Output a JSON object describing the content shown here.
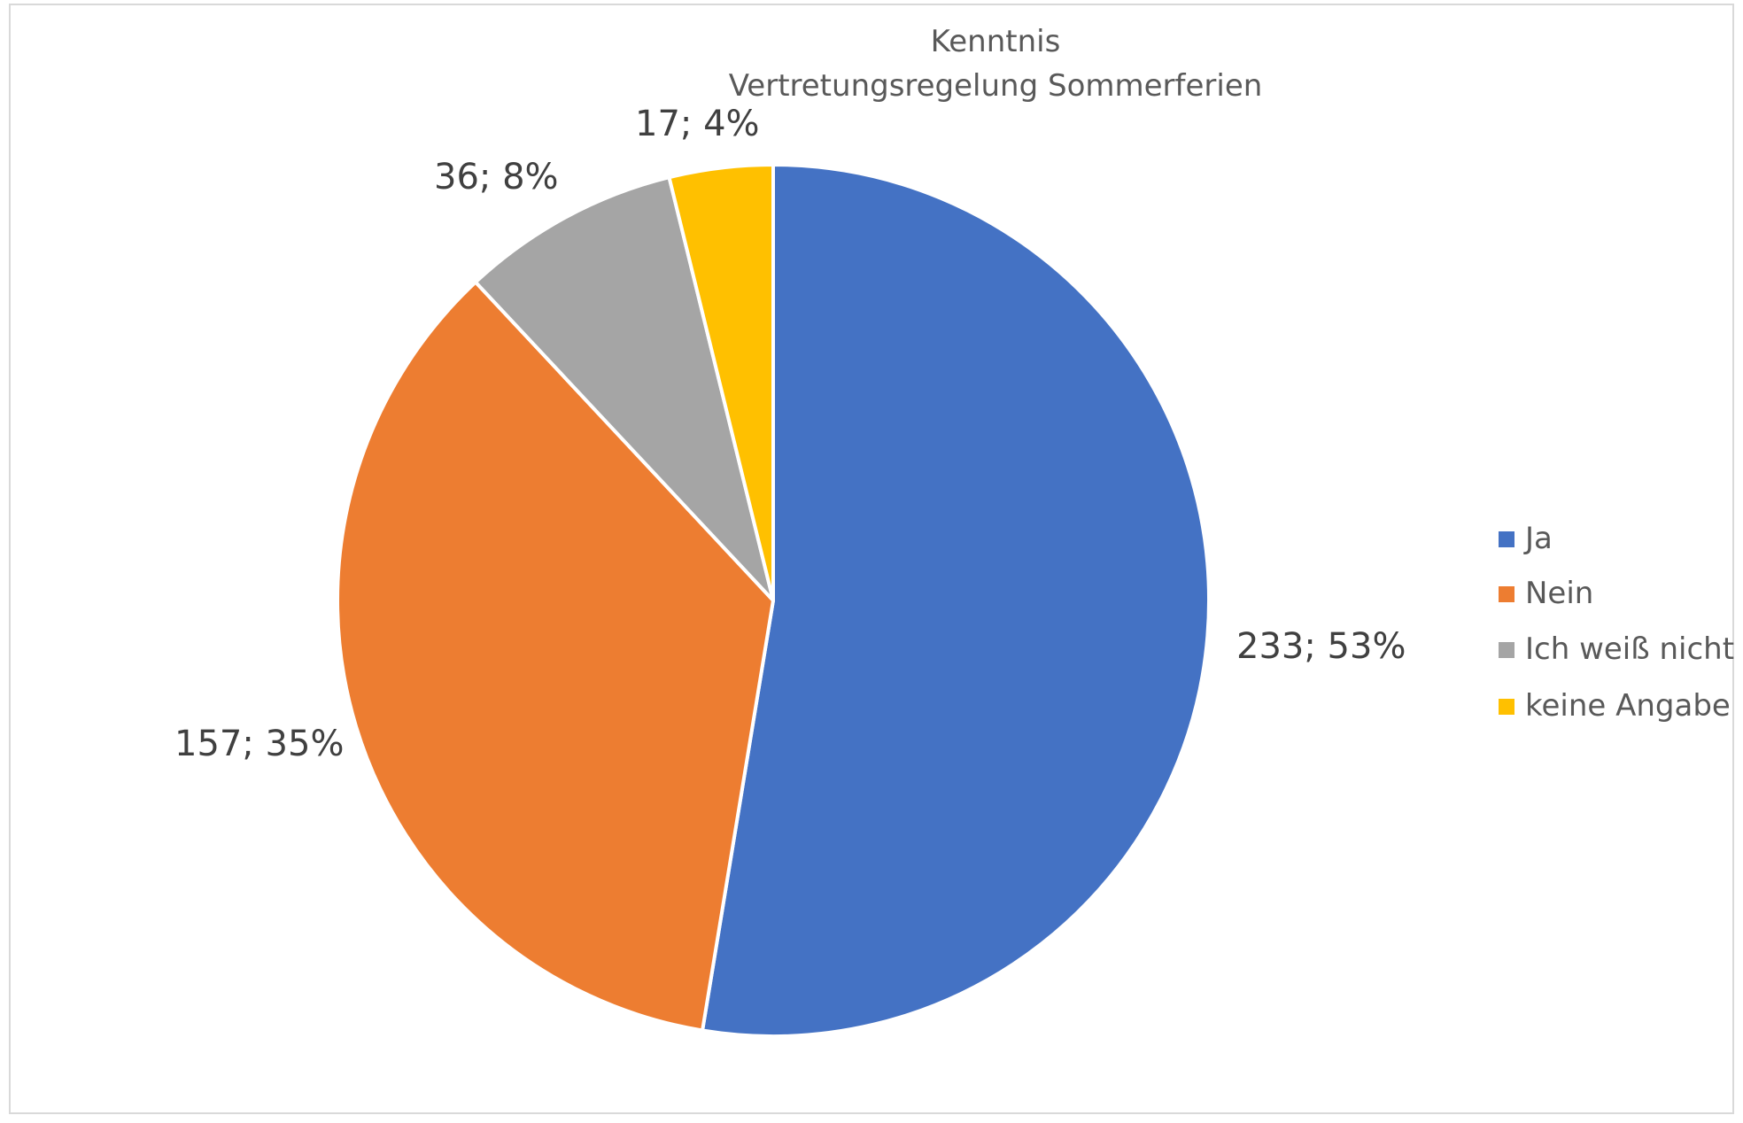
{
  "chart_data": {
    "type": "pie",
    "title": [
      "Kenntnis",
      "Vertretungsregelung Sommerferien"
    ],
    "categories": [
      "Ja",
      "Nein",
      "Ich weiß nicht",
      "keine Angabe"
    ],
    "values": [
      233,
      157,
      36,
      17
    ],
    "percent_labels": [
      "53%",
      "35%",
      "8%",
      "4%"
    ],
    "data_labels": [
      "233; 53%",
      "157; 35%",
      "36; 8%",
      "17; 4%"
    ],
    "colors": [
      "#4472C4",
      "#ED7D31",
      "#A5A5A5",
      "#FFC000"
    ],
    "start_angle_deg": 0,
    "direction": "clockwise",
    "legend": "right"
  }
}
